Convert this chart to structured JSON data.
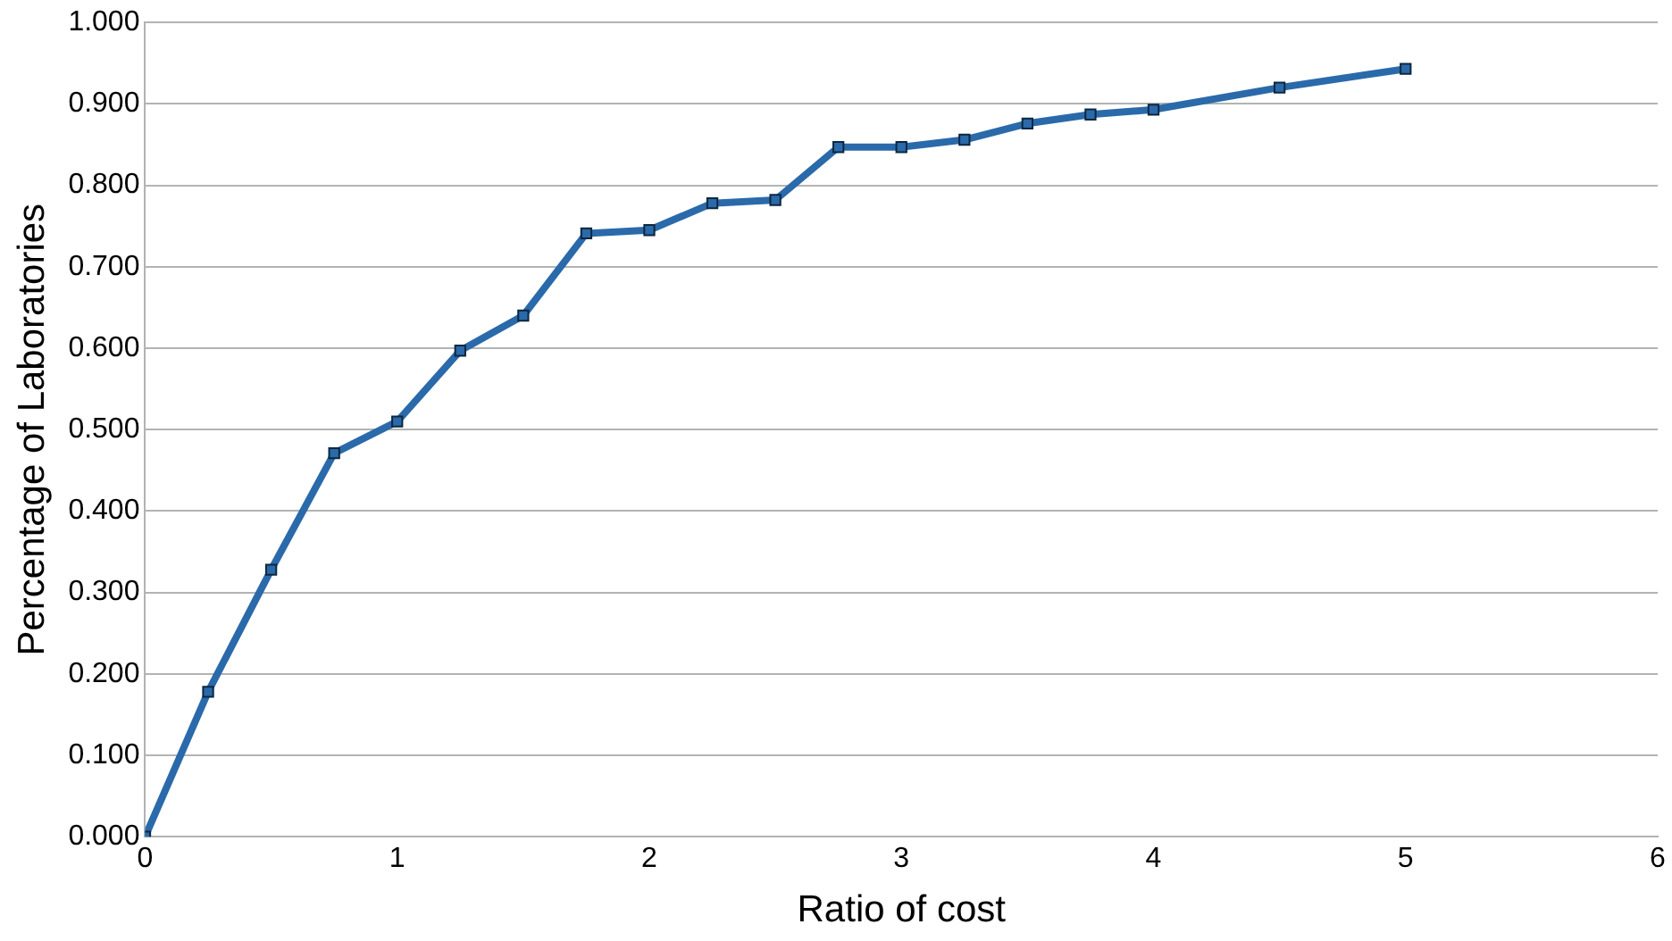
{
  "chart_data": {
    "type": "line",
    "xlabel": "Ratio of cost",
    "ylabel": "Percentage of Laboratories",
    "x": [
      0,
      0.25,
      0.5,
      0.75,
      1,
      1.25,
      1.5,
      1.75,
      2,
      2.25,
      2.5,
      2.75,
      3,
      3.25,
      3.5,
      3.75,
      4,
      4.5,
      5
    ],
    "series": [
      {
        "color": "#2a6aaa",
        "values": [
          0,
          0.178,
          0.328,
          0.471,
          0.51,
          0.597,
          0.64,
          0.741,
          0.745,
          0.778,
          0.782,
          0.847,
          0.847,
          0.856,
          0.876,
          0.887,
          0.893,
          0.92,
          0.943
        ]
      }
    ],
    "xlim": [
      0,
      6
    ],
    "xticks": [
      0,
      1,
      2,
      3,
      4,
      5,
      6
    ],
    "ylim": [
      0,
      1
    ],
    "yticks": [
      {
        "value": 0,
        "label": "0.000"
      },
      {
        "value": 0.1,
        "label": "0.100"
      },
      {
        "value": 0.2,
        "label": "0.200"
      },
      {
        "value": 0.3,
        "label": "0.300"
      },
      {
        "value": 0.4,
        "label": "0.400"
      },
      {
        "value": 0.5,
        "label": "0.500"
      },
      {
        "value": 0.6,
        "label": "0.600"
      },
      {
        "value": 0.7,
        "label": "0.700"
      },
      {
        "value": 0.8,
        "label": "0.800"
      },
      {
        "value": 0.9,
        "label": "0.900"
      },
      {
        "value": 1,
        "label": "1.000"
      }
    ],
    "grid": "y",
    "legend": false,
    "marker": "square",
    "line_style": "solid"
  }
}
